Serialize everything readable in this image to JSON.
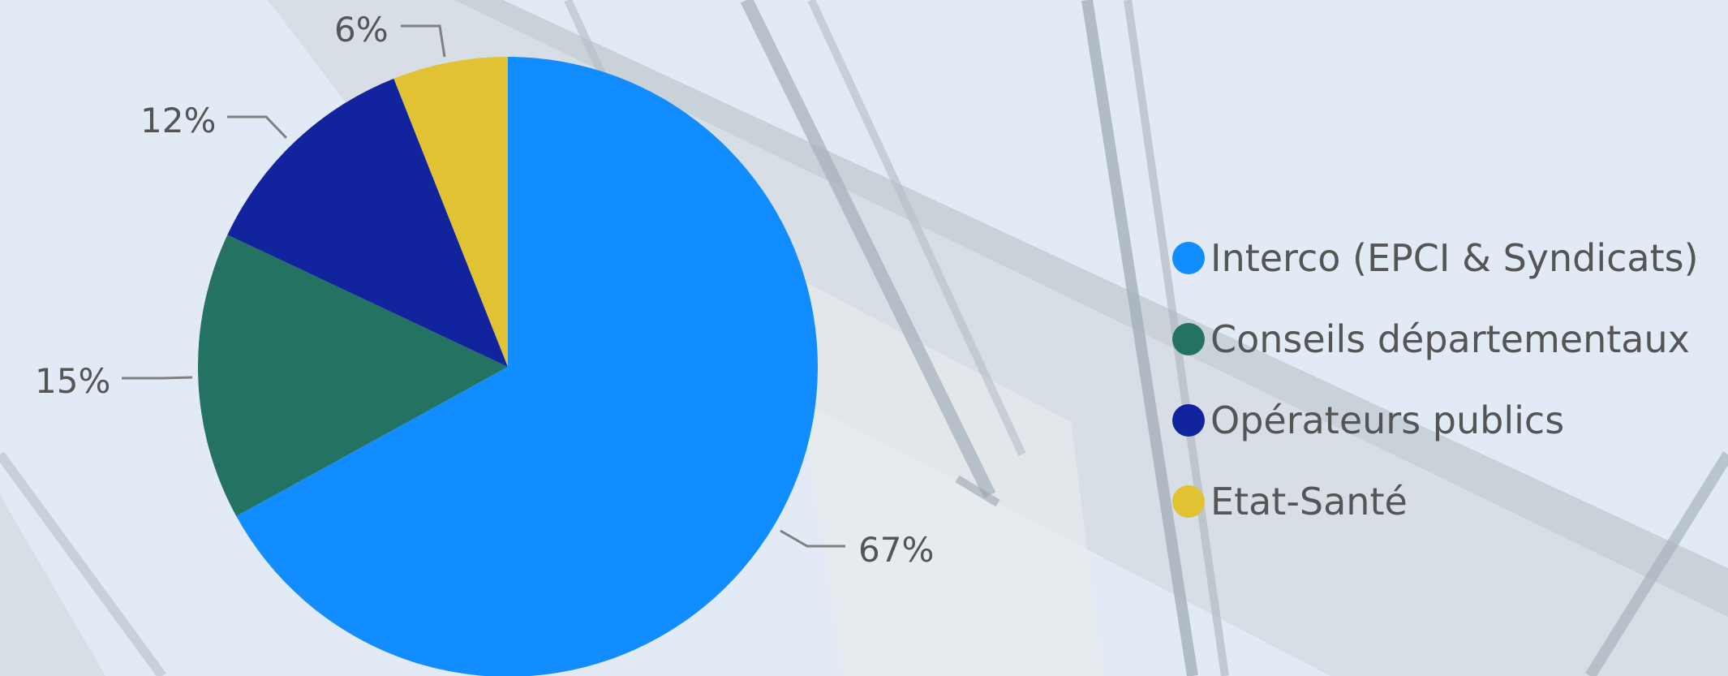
{
  "chart_data": {
    "type": "pie",
    "categories": [
      "Interco (EPCI & Syndicats)",
      "Conseils départementaux",
      "Opérateurs publics",
      "Etat-Santé"
    ],
    "values": [
      67,
      15,
      12,
      6
    ],
    "data_labels": [
      "67%",
      "15%",
      "12%",
      "6%"
    ],
    "colors": [
      "#118dff",
      "#247261",
      "#12239e",
      "#e1c233"
    ],
    "legend": "right",
    "start_angle": "12 o'clock",
    "direction": "clockwise"
  },
  "background": {
    "color": "#e1eaf5",
    "image": "bridge-cables-photo"
  }
}
